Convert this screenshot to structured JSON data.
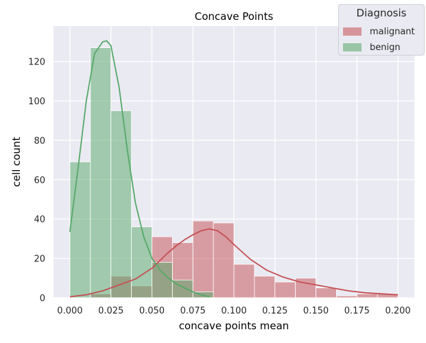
{
  "chart_data": {
    "type": "histogram",
    "title": "Concave Points",
    "xlabel": "concave points mean",
    "ylabel": "cell count",
    "xlim": [
      -0.01,
      0.21
    ],
    "ylim": [
      0,
      138
    ],
    "grid": true,
    "xticks": [
      0.0,
      0.025,
      0.05,
      0.075,
      0.1,
      0.125,
      0.15,
      0.175,
      0.2
    ],
    "xtick_labels": [
      "0.000",
      "0.025",
      "0.050",
      "0.075",
      "0.100",
      "0.125",
      "0.150",
      "0.175",
      "0.200"
    ],
    "yticks": [
      0,
      20,
      40,
      60,
      80,
      100,
      120
    ],
    "ytick_labels": [
      "0",
      "20",
      "40",
      "60",
      "80",
      "100",
      "120"
    ],
    "bin_edges": [
      0.0,
      0.0125,
      0.025,
      0.0375,
      0.05,
      0.0625,
      0.075,
      0.0875,
      0.1,
      0.1125,
      0.125,
      0.1375,
      0.15,
      0.1625,
      0.175,
      0.1875,
      0.2
    ],
    "legend": {
      "title": "Diagnosis",
      "position": "top-right"
    },
    "series": [
      {
        "name": "malignant",
        "color": "#c44e52",
        "counts": [
          0,
          2,
          11,
          6,
          31,
          28,
          39,
          38,
          17,
          11,
          8,
          10,
          5,
          1,
          2,
          2
        ],
        "kde": {
          "x": [
            0.0,
            0.01,
            0.02,
            0.03,
            0.04,
            0.05,
            0.055,
            0.06,
            0.065,
            0.07,
            0.075,
            0.08,
            0.085,
            0.09,
            0.095,
            0.1,
            0.11,
            0.12,
            0.13,
            0.14,
            0.15,
            0.16,
            0.17,
            0.18,
            0.19,
            0.2
          ],
          "y": [
            0.5,
            1.5,
            3.5,
            6.5,
            9.5,
            15,
            19,
            23,
            26.5,
            29.5,
            32,
            34,
            35,
            34,
            31,
            27,
            19.5,
            14,
            10.5,
            8,
            6.5,
            5,
            3.5,
            2.5,
            2,
            1.5
          ]
        }
      },
      {
        "name": "benign",
        "color": "#55a868",
        "counts": [
          69,
          127,
          95,
          36,
          18,
          9,
          3,
          0,
          0,
          0,
          0,
          0,
          0,
          0,
          0,
          0
        ],
        "kde": {
          "x": [
            0.0,
            0.005,
            0.01,
            0.015,
            0.02,
            0.0225,
            0.025,
            0.03,
            0.035,
            0.04,
            0.045,
            0.05,
            0.055,
            0.06,
            0.065,
            0.07,
            0.075,
            0.08,
            0.085
          ],
          "y": [
            33.5,
            66,
            100,
            124,
            130,
            130.5,
            128,
            107,
            75,
            48,
            31,
            20,
            14,
            10,
            7,
            5,
            3,
            1.5,
            0.5
          ]
        }
      }
    ]
  }
}
